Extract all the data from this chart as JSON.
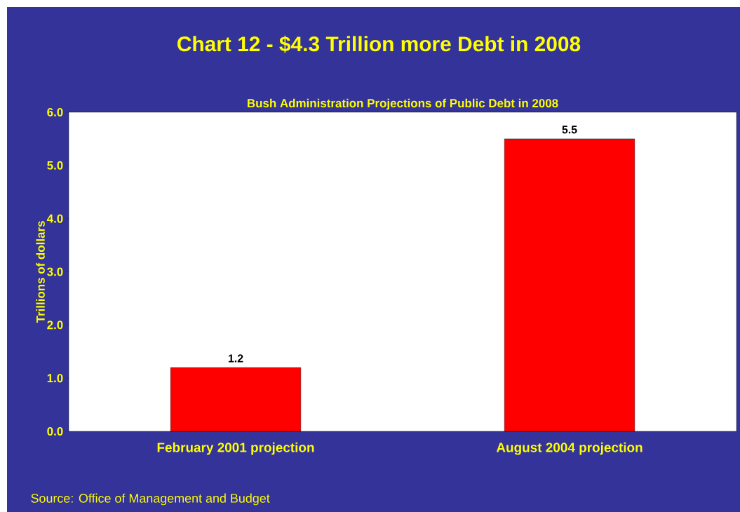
{
  "chart_data": {
    "type": "bar",
    "title": "Chart 12 - $4.3 Trillion more Debt in 2008",
    "subtitle": "Bush Administration Projections of Public Debt in 2008",
    "ylabel": "Trillions of dollars",
    "annotations": [
      "Source: Office of Management and Budget"
    ],
    "categories": [
      "February 2001 projection",
      "August 2004 projection"
    ],
    "values": [
      1.2,
      5.5
    ],
    "color": "#ff0000",
    "ylim": [
      0,
      6
    ],
    "yticks": [
      {
        "value": 0,
        "label": "0.0"
      },
      {
        "value": 1,
        "label": "1.0"
      },
      {
        "value": 2,
        "label": "2.0"
      },
      {
        "value": 3,
        "label": "3.0"
      },
      {
        "value": 4,
        "label": "4.0"
      },
      {
        "value": 5,
        "label": "5.0"
      },
      {
        "value": 6,
        "label": "6.0"
      }
    ],
    "data_labels": true
  }
}
